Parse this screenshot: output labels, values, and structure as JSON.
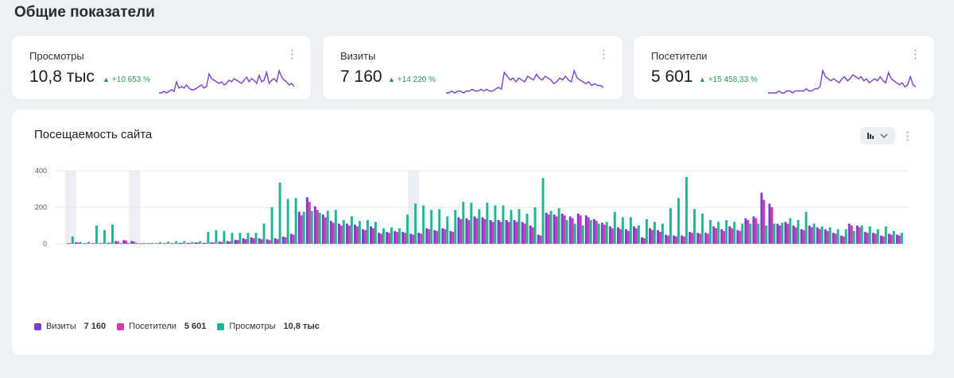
{
  "section": {
    "title": "Общие показатели"
  },
  "kpis": [
    {
      "name": "Просмотры",
      "value": "10,8 тыс",
      "delta": "+10 653 %",
      "trend": [
        2,
        2,
        3,
        2,
        3,
        4,
        3,
        9,
        5,
        6,
        5,
        7,
        5,
        4,
        4,
        5,
        6,
        7,
        5,
        6,
        14,
        11,
        10,
        9,
        8,
        9,
        7,
        8,
        10,
        9,
        11,
        10,
        9,
        8,
        10,
        12,
        9,
        11,
        10,
        8,
        13,
        9,
        10,
        15,
        8,
        10,
        11,
        9,
        16,
        12,
        10,
        9,
        7,
        8,
        6
      ]
    },
    {
      "name": "Визиты",
      "value": "7 160",
      "delta": "+14 220 %",
      "trend": [
        1,
        1,
        2,
        1,
        2,
        2,
        1,
        2,
        2,
        3,
        2,
        2,
        3,
        2,
        3,
        2,
        2,
        3,
        4,
        3,
        12,
        10,
        8,
        9,
        7,
        9,
        8,
        7,
        10,
        9,
        8,
        11,
        9,
        8,
        10,
        9,
        8,
        6,
        7,
        9,
        8,
        10,
        8,
        7,
        13,
        9,
        8,
        7,
        6,
        7,
        5,
        6,
        5,
        5,
        4
      ]
    },
    {
      "name": "Посетители",
      "value": "5 601",
      "delta": "+15 458,33 %",
      "trend": [
        1,
        1,
        1,
        1,
        2,
        1,
        1,
        2,
        2,
        1,
        2,
        2,
        2,
        2,
        3,
        2,
        2,
        3,
        3,
        4,
        12,
        9,
        8,
        7,
        8,
        7,
        6,
        8,
        9,
        7,
        8,
        10,
        9,
        8,
        9,
        7,
        8,
        6,
        7,
        8,
        7,
        9,
        7,
        6,
        11,
        8,
        7,
        6,
        5,
        6,
        4,
        5,
        9,
        5,
        4
      ]
    }
  ],
  "chart": {
    "title": "Посещаемость сайта",
    "type_button_icon": "bar-chart-icon",
    "legend": [
      {
        "name": "Визиты",
        "value": "7 160",
        "color": "#7b3fc9"
      },
      {
        "name": "Посетители",
        "value": "5 601",
        "color": "#d23bb0"
      },
      {
        "name": "Просмотры",
        "value": "10,8 тыс",
        "color": "#1fb597"
      }
    ]
  },
  "chart_data": {
    "type": "bar",
    "title": "Посещаемость сайта",
    "xlabel": "",
    "ylabel": "",
    "ylim": [
      0,
      400
    ],
    "yticks": [
      0,
      200,
      400
    ],
    "grid": true,
    "legend_position": "bottom-left",
    "highlighted_columns": [
      0,
      8,
      43
    ],
    "series": [
      {
        "name": "Визиты",
        "color": "#7b3fc9",
        "values": [
          3,
          8,
          3,
          3,
          3,
          5,
          15,
          20,
          15,
          2,
          3,
          3,
          3,
          3,
          5,
          5,
          8,
          5,
          8,
          12,
          15,
          22,
          30,
          35,
          30,
          25,
          30,
          40,
          55,
          175,
          255,
          205,
          160,
          125,
          110,
          110,
          105,
          80,
          95,
          60,
          65,
          70,
          65,
          55,
          60,
          85,
          75,
          85,
          70,
          145,
          140,
          150,
          145,
          130,
          130,
          130,
          130,
          120,
          100,
          50,
          170,
          160,
          165,
          150,
          165,
          155,
          135,
          115,
          95,
          90,
          80,
          95,
          35,
          85,
          75,
          50,
          45,
          45,
          65,
          60,
          60,
          95,
          80,
          95,
          75,
          140,
          150,
          280,
          220,
          110,
          120,
          100,
          80,
          100,
          90,
          80,
          60,
          45,
          110,
          100,
          65,
          60,
          45,
          55,
          50
        ]
      },
      {
        "name": "Посетители",
        "value_note": "",
        "color": "#d23bb0",
        "values": [
          3,
          7,
          3,
          3,
          3,
          5,
          12,
          18,
          12,
          2,
          3,
          3,
          3,
          3,
          5,
          5,
          7,
          5,
          7,
          10,
          12,
          20,
          25,
          30,
          25,
          20,
          25,
          35,
          50,
          155,
          230,
          185,
          145,
          115,
          100,
          100,
          95,
          75,
          85,
          55,
          60,
          65,
          60,
          50,
          55,
          80,
          70,
          80,
          65,
          135,
          130,
          140,
          135,
          120,
          120,
          120,
          120,
          110,
          90,
          45,
          160,
          150,
          155,
          140,
          155,
          145,
          125,
          105,
          85,
          80,
          70,
          85,
          30,
          75,
          65,
          45,
          40,
          40,
          60,
          55,
          55,
          85,
          70,
          85,
          70,
          130,
          140,
          240,
          200,
          100,
          110,
          90,
          75,
          90,
          80,
          70,
          55,
          40,
          100,
          90,
          60,
          55,
          40,
          50,
          45
        ]
      },
      {
        "name": "Просмотры",
        "color": "#1fb597",
        "values": [
          40,
          10,
          10,
          100,
          75,
          105,
          5,
          5,
          5,
          5,
          5,
          10,
          12,
          15,
          15,
          10,
          15,
          65,
          75,
          70,
          60,
          60,
          60,
          60,
          110,
          200,
          335,
          245,
          250,
          175,
          180,
          170,
          180,
          185,
          130,
          150,
          125,
          130,
          120,
          85,
          90,
          85,
          160,
          220,
          210,
          185,
          190,
          150,
          185,
          230,
          225,
          190,
          225,
          210,
          210,
          185,
          190,
          165,
          200,
          360,
          180,
          195,
          130,
          110,
          100,
          130,
          110,
          120,
          175,
          145,
          145,
          100,
          135,
          120,
          110,
          195,
          250,
          365,
          190,
          165,
          130,
          120,
          130,
          120,
          110,
          110,
          110,
          100,
          110,
          115,
          140,
          130,
          175,
          110,
          95,
          90,
          80,
          80,
          70,
          100,
          95,
          80,
          95,
          70,
          60
        ]
      }
    ]
  }
}
